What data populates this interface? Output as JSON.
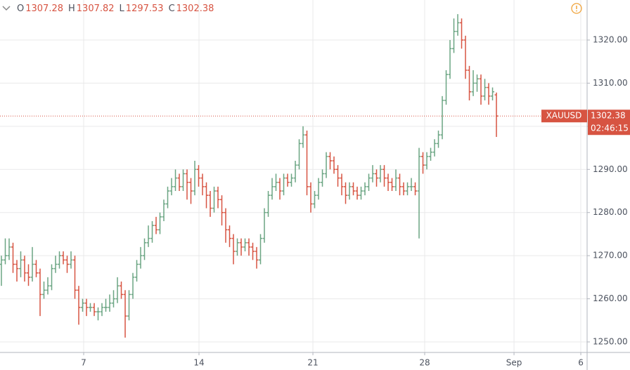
{
  "chart_data": {
    "type": "ohlc",
    "symbol": "XAUUSD",
    "countdown": "02:46:15",
    "ohlc_labels": [
      "O",
      "H",
      "L",
      "C"
    ],
    "up_color": "#6ba583",
    "down_color": "#d75442",
    "grid": true,
    "open": [
      1268,
      1269,
      1270,
      1272,
      1268,
      1267,
      1269,
      1266,
      1265,
      1268,
      1266,
      1261,
      1262,
      1263,
      1267,
      1268,
      1270,
      1269,
      1268,
      1269,
      1262,
      1258,
      1259,
      1258,
      1258,
      1257,
      1257,
      1258,
      1258,
      1259,
      1260,
      1263,
      1261,
      1256,
      1261,
      1265,
      1268,
      1270,
      1273,
      1274,
      1277,
      1276,
      1279,
      1282,
      1285,
      1286,
      1288,
      1286,
      1289,
      1287,
      1285,
      1290,
      1288,
      1286,
      1284,
      1281,
      1285,
      1283,
      1280,
      1276,
      1274,
      1271,
      1273,
      1272,
      1273,
      1272,
      1271,
      1269,
      1274,
      1280,
      1284,
      1286,
      1287,
      1285,
      1288,
      1287,
      1288,
      1291,
      1296,
      1298,
      1286,
      1282,
      1284,
      1287,
      1289,
      1293,
      1292,
      1290,
      1288,
      1286,
      1284,
      1286,
      1285,
      1284,
      1285,
      1286,
      1288,
      1289,
      1288,
      1290,
      1288,
      1287,
      1286,
      1288,
      1286,
      1285,
      1286,
      1286,
      1285,
      1293,
      1291,
      1293,
      1294,
      1296,
      1298,
      1306,
      1312,
      1318,
      1322,
      1324,
      1320,
      1313,
      1308,
      1310,
      1311,
      1307,
      1309,
      1307,
      1307.28
    ],
    "high": [
      1270,
      1274,
      1274,
      1273,
      1269,
      1271,
      1270,
      1268,
      1272,
      1269,
      1267,
      1264,
      1265,
      1268,
      1270,
      1271,
      1271,
      1270,
      1271,
      1270,
      1263,
      1260,
      1260,
      1259,
      1259,
      1258,
      1259,
      1260,
      1261,
      1262,
      1265,
      1264,
      1262,
      1262,
      1266,
      1269,
      1272,
      1274,
      1277,
      1278,
      1279,
      1280,
      1283,
      1286,
      1288,
      1290,
      1289,
      1290,
      1290,
      1288,
      1292,
      1291,
      1289,
      1287,
      1285,
      1286,
      1286,
      1284,
      1281,
      1277,
      1275,
      1274,
      1274,
      1274,
      1274,
      1273,
      1272,
      1275,
      1281,
      1285,
      1288,
      1289,
      1288,
      1289,
      1289,
      1289,
      1292,
      1297,
      1300,
      1299,
      1287,
      1285,
      1288,
      1290,
      1294,
      1294,
      1293,
      1291,
      1289,
      1287,
      1287,
      1287,
      1286,
      1286,
      1287,
      1289,
      1291,
      1290,
      1291,
      1291,
      1289,
      1288,
      1290,
      1289,
      1287,
      1287,
      1288,
      1287,
      1295,
      1294,
      1294,
      1295,
      1297,
      1299,
      1307,
      1313,
      1320,
      1325,
      1326,
      1325,
      1321,
      1314,
      1313,
      1312,
      1312,
      1311,
      1310,
      1309,
      1307.82
    ],
    "low": [
      1263,
      1268,
      1269,
      1266,
      1264,
      1265,
      1264,
      1263,
      1264,
      1265,
      1256,
      1260,
      1261,
      1262,
      1266,
      1267,
      1268,
      1266,
      1267,
      1260,
      1254,
      1257,
      1256,
      1257,
      1256,
      1255,
      1256,
      1257,
      1257,
      1258,
      1259,
      1260,
      1251,
      1255,
      1260,
      1264,
      1267,
      1269,
      1272,
      1273,
      1275,
      1275,
      1278,
      1281,
      1284,
      1285,
      1285,
      1285,
      1283,
      1282,
      1284,
      1286,
      1284,
      1281,
      1279,
      1280,
      1281,
      1277,
      1273,
      1272,
      1268,
      1270,
      1270,
      1271,
      1270,
      1269,
      1267,
      1268,
      1273,
      1279,
      1283,
      1285,
      1283,
      1284,
      1286,
      1286,
      1287,
      1290,
      1295,
      1284,
      1280,
      1281,
      1283,
      1286,
      1288,
      1290,
      1289,
      1286,
      1284,
      1282,
      1283,
      1284,
      1283,
      1283,
      1284,
      1285,
      1287,
      1286,
      1287,
      1286,
      1285,
      1285,
      1285,
      1284,
      1284,
      1284,
      1285,
      1284,
      1274,
      1289,
      1290,
      1292,
      1293,
      1295,
      1297,
      1305,
      1311,
      1317,
      1321,
      1318,
      1311,
      1306,
      1307,
      1308,
      1305,
      1306,
      1305,
      1306,
      1297.53
    ],
    "close": [
      1269,
      1270,
      1272,
      1268,
      1267,
      1269,
      1266,
      1265,
      1268,
      1266,
      1261,
      1262,
      1263,
      1267,
      1268,
      1270,
      1269,
      1268,
      1269,
      1262,
      1258,
      1259,
      1258,
      1258,
      1257,
      1257,
      1258,
      1258,
      1259,
      1260,
      1263,
      1261,
      1256,
      1261,
      1265,
      1268,
      1270,
      1273,
      1274,
      1277,
      1276,
      1279,
      1282,
      1285,
      1286,
      1288,
      1286,
      1289,
      1287,
      1285,
      1290,
      1288,
      1286,
      1284,
      1281,
      1285,
      1283,
      1280,
      1276,
      1274,
      1271,
      1273,
      1272,
      1273,
      1272,
      1271,
      1269,
      1274,
      1280,
      1284,
      1286,
      1287,
      1285,
      1288,
      1287,
      1288,
      1291,
      1296,
      1298,
      1286,
      1282,
      1284,
      1287,
      1289,
      1293,
      1292,
      1290,
      1288,
      1286,
      1284,
      1286,
      1285,
      1284,
      1285,
      1286,
      1288,
      1289,
      1288,
      1290,
      1288,
      1287,
      1286,
      1288,
      1286,
      1285,
      1286,
      1286,
      1285,
      1293,
      1291,
      1293,
      1294,
      1296,
      1298,
      1306,
      1312,
      1318,
      1322,
      1324,
      1320,
      1313,
      1308,
      1310,
      1311,
      1307,
      1309,
      1307,
      1308,
      1302.38
    ],
    "xlim": [
      -0.364,
      151.45
    ],
    "xticks": [
      {
        "value": 21.27,
        "label": "7"
      },
      {
        "value": 51.09,
        "label": "14"
      },
      {
        "value": 80.55,
        "label": "21"
      },
      {
        "value": 109.45,
        "label": "28"
      },
      {
        "value": 132.55,
        "label": "Sep"
      },
      {
        "value": 149.82,
        "label": "6"
      }
    ],
    "ylim": [
      1247.56,
      1329.28
    ],
    "yticks": [
      {
        "value": 1250,
        "label": "1250.00"
      },
      {
        "value": 1260,
        "label": "1260.00"
      },
      {
        "value": 1270,
        "label": "1270.00"
      },
      {
        "value": 1280,
        "label": "1280.00"
      },
      {
        "value": 1290,
        "label": "1290.00"
      },
      {
        "value": 1300,
        "label": "1300.00"
      },
      {
        "value": 1310,
        "label": "1310.00"
      },
      {
        "value": 1320,
        "label": "1320.00"
      }
    ]
  }
}
